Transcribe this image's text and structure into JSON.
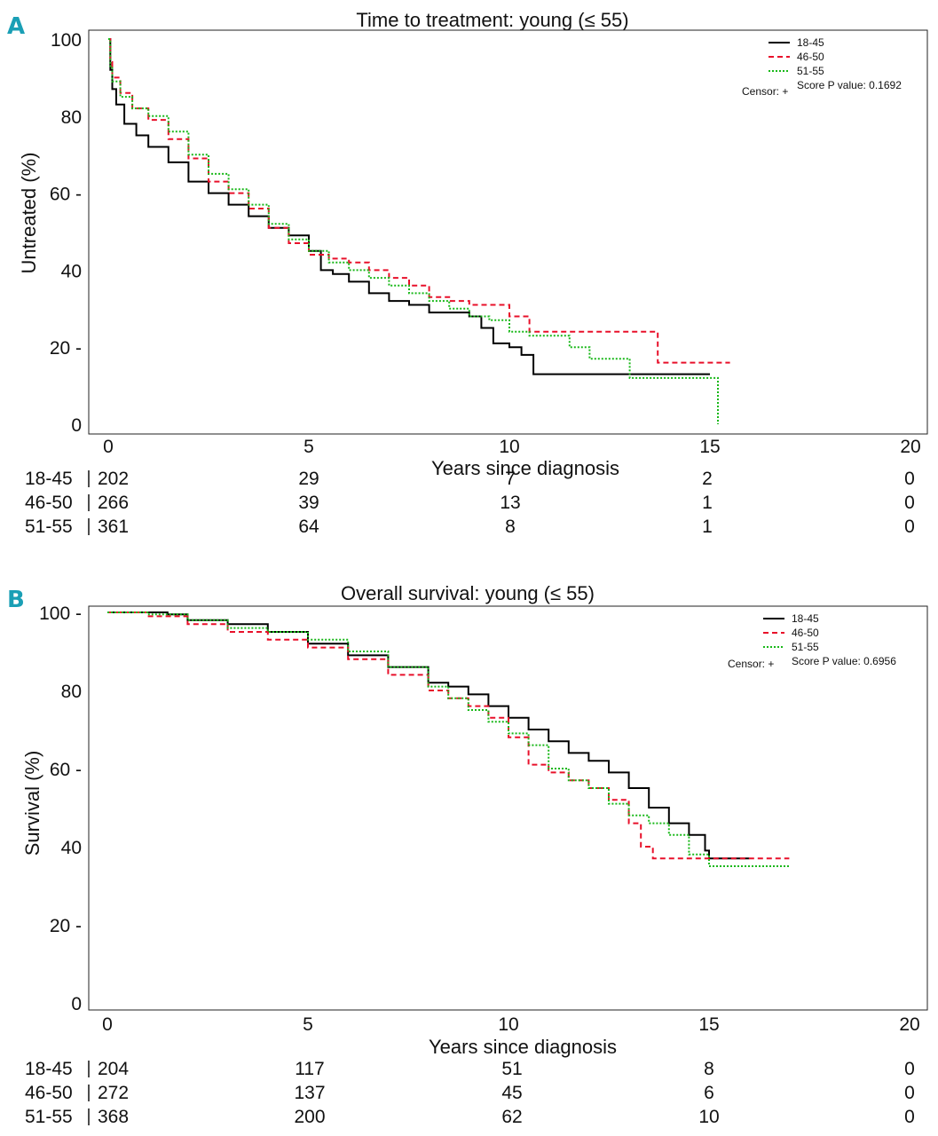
{
  "chart_data": [
    {
      "type": "line",
      "panel_letter": "A",
      "title": "Time to treatment: young (≤ 55)",
      "xlabel": "Years since diagnosis",
      "ylabel": "Untreated (%)",
      "xlim": [
        0,
        20
      ],
      "ylim": [
        0,
        100
      ],
      "xticks": [
        "0",
        "5",
        "10",
        "15",
        "20"
      ],
      "yticks": [
        "0",
        "20 -",
        "40",
        "60 -",
        "80",
        "100"
      ],
      "legend": {
        "position": "top-right",
        "censor_label": "Censor: +",
        "pvalue_label": "Score P value: 0.1692"
      },
      "series": [
        {
          "name": "18-45",
          "color": "#000000",
          "dash": "solid",
          "points": [
            [
              0,
              100
            ],
            [
              0.05,
              92
            ],
            [
              0.1,
              87
            ],
            [
              0.2,
              83
            ],
            [
              0.4,
              78
            ],
            [
              0.7,
              75
            ],
            [
              1,
              72
            ],
            [
              1.5,
              68
            ],
            [
              2,
              63
            ],
            [
              2.5,
              60
            ],
            [
              3,
              57
            ],
            [
              3.5,
              54
            ],
            [
              4,
              51
            ],
            [
              4.5,
              49
            ],
            [
              5,
              45
            ],
            [
              5.3,
              40
            ],
            [
              5.6,
              39
            ],
            [
              6,
              37
            ],
            [
              6.5,
              34
            ],
            [
              7,
              32
            ],
            [
              7.5,
              31
            ],
            [
              8,
              29
            ],
            [
              8.5,
              29
            ],
            [
              9,
              28
            ],
            [
              9.3,
              25
            ],
            [
              9.6,
              21
            ],
            [
              10,
              20
            ],
            [
              10.3,
              18
            ],
            [
              10.6,
              13
            ],
            [
              11,
              13
            ],
            [
              13,
              13
            ],
            [
              15,
              13
            ]
          ],
          "risk": [
            "202",
            "29",
            "7",
            "2",
            "0"
          ]
        },
        {
          "name": "46-50",
          "color": "#e8102a",
          "dash": "6,4",
          "points": [
            [
              0,
              100
            ],
            [
              0.05,
              94
            ],
            [
              0.1,
              90
            ],
            [
              0.3,
              86
            ],
            [
              0.6,
              82
            ],
            [
              1,
              79
            ],
            [
              1.5,
              74
            ],
            [
              2,
              69
            ],
            [
              2.5,
              63
            ],
            [
              3,
              60
            ],
            [
              3.5,
              56
            ],
            [
              4,
              51
            ],
            [
              4.5,
              47
            ],
            [
              5,
              44
            ],
            [
              5.5,
              43
            ],
            [
              6,
              42
            ],
            [
              6.5,
              40
            ],
            [
              7,
              38
            ],
            [
              7.5,
              36
            ],
            [
              8,
              33
            ],
            [
              8.5,
              32
            ],
            [
              9,
              31
            ],
            [
              9.5,
              31
            ],
            [
              10,
              28
            ],
            [
              10.5,
              24
            ],
            [
              11,
              24
            ],
            [
              12,
              24
            ],
            [
              13,
              24
            ],
            [
              13.6,
              24
            ],
            [
              13.7,
              16
            ],
            [
              15.5,
              16
            ]
          ],
          "risk": [
            "266",
            "39",
            "13",
            "1",
            "0"
          ]
        },
        {
          "name": "51-55",
          "color": "#18b818",
          "dash": "2,2",
          "points": [
            [
              0,
              100
            ],
            [
              0.05,
              93
            ],
            [
              0.1,
              89
            ],
            [
              0.3,
              85
            ],
            [
              0.6,
              82
            ],
            [
              1,
              80
            ],
            [
              1.5,
              76
            ],
            [
              2,
              70
            ],
            [
              2.5,
              65
            ],
            [
              3,
              61
            ],
            [
              3.5,
              57
            ],
            [
              4,
              52
            ],
            [
              4.5,
              48
            ],
            [
              5,
              45
            ],
            [
              5.5,
              42
            ],
            [
              6,
              40
            ],
            [
              6.5,
              38
            ],
            [
              7,
              36
            ],
            [
              7.5,
              34
            ],
            [
              8,
              32
            ],
            [
              8.5,
              30
            ],
            [
              9,
              28
            ],
            [
              9.5,
              27
            ],
            [
              10,
              24
            ],
            [
              10.5,
              23
            ],
            [
              11,
              23
            ],
            [
              11.5,
              20
            ],
            [
              12,
              17
            ],
            [
              12.5,
              17
            ],
            [
              13,
              12
            ],
            [
              14,
              12
            ],
            [
              15,
              12
            ],
            [
              15.2,
              0
            ]
          ],
          "risk": [
            "361",
            "64",
            "8",
            "1",
            "0"
          ]
        }
      ]
    },
    {
      "type": "line",
      "panel_letter": "B",
      "title": "Overall survival: young (≤ 55)",
      "xlabel": "Years since diagnosis",
      "ylabel": "Survival (%)",
      "xlim": [
        0,
        20
      ],
      "ylim": [
        0,
        100
      ],
      "xticks": [
        "0",
        "5",
        "10",
        "15",
        "20"
      ],
      "yticks": [
        "0",
        "20 -",
        "40",
        "60 -",
        "80",
        "100 -"
      ],
      "legend": {
        "position": "top-right",
        "censor_label": "Censor: +",
        "pvalue_label": "Score P value: 0.6956"
      },
      "series": [
        {
          "name": "18-45",
          "color": "#000000",
          "dash": "solid",
          "points": [
            [
              0,
              100
            ],
            [
              1,
              100
            ],
            [
              1.5,
              99.5
            ],
            [
              2,
              98
            ],
            [
              3,
              97
            ],
            [
              4,
              95
            ],
            [
              5,
              92
            ],
            [
              6,
              89
            ],
            [
              7,
              86
            ],
            [
              8,
              82
            ],
            [
              8.5,
              81
            ],
            [
              9,
              79
            ],
            [
              9.5,
              76
            ],
            [
              10,
              73
            ],
            [
              10.5,
              70
            ],
            [
              11,
              67
            ],
            [
              11.5,
              64
            ],
            [
              12,
              62
            ],
            [
              12.5,
              59
            ],
            [
              13,
              55
            ],
            [
              13.5,
              50
            ],
            [
              14,
              46
            ],
            [
              14.5,
              43
            ],
            [
              14.9,
              39
            ],
            [
              15,
              37
            ],
            [
              16,
              37
            ]
          ],
          "risk": [
            "204",
            "117",
            "51",
            "8",
            "0"
          ]
        },
        {
          "name": "46-50",
          "color": "#e8102a",
          "dash": "6,4",
          "points": [
            [
              0,
              100
            ],
            [
              1,
              99
            ],
            [
              2,
              97
            ],
            [
              3,
              95
            ],
            [
              4,
              93
            ],
            [
              5,
              91
            ],
            [
              6,
              88
            ],
            [
              7,
              84
            ],
            [
              8,
              80
            ],
            [
              8.5,
              78
            ],
            [
              9,
              76
            ],
            [
              9.5,
              73
            ],
            [
              10,
              68
            ],
            [
              10.5,
              61
            ],
            [
              11,
              59
            ],
            [
              11.5,
              57
            ],
            [
              12,
              55
            ],
            [
              12.5,
              52
            ],
            [
              13,
              46
            ],
            [
              13.3,
              40
            ],
            [
              13.6,
              37
            ],
            [
              14,
              37
            ],
            [
              15,
              37
            ],
            [
              17,
              37
            ]
          ],
          "risk": [
            "272",
            "137",
            "45",
            "6",
            "0"
          ]
        },
        {
          "name": "51-55",
          "color": "#18b818",
          "dash": "2,2",
          "points": [
            [
              0,
              100
            ],
            [
              1,
              99.5
            ],
            [
              2,
              98
            ],
            [
              3,
              96
            ],
            [
              4,
              95
            ],
            [
              5,
              93
            ],
            [
              6,
              90
            ],
            [
              7,
              86
            ],
            [
              8,
              81
            ],
            [
              8.5,
              78
            ],
            [
              9,
              75
            ],
            [
              9.5,
              72
            ],
            [
              10,
              69
            ],
            [
              10.5,
              66
            ],
            [
              11,
              60
            ],
            [
              11.5,
              57
            ],
            [
              12,
              55
            ],
            [
              12.5,
              51
            ],
            [
              13,
              48
            ],
            [
              13.5,
              46
            ],
            [
              14,
              43
            ],
            [
              14.5,
              38
            ],
            [
              15,
              35
            ],
            [
              16,
              35
            ],
            [
              17,
              35
            ]
          ],
          "risk": [
            "368",
            "200",
            "62",
            "10",
            "0"
          ]
        }
      ]
    }
  ]
}
